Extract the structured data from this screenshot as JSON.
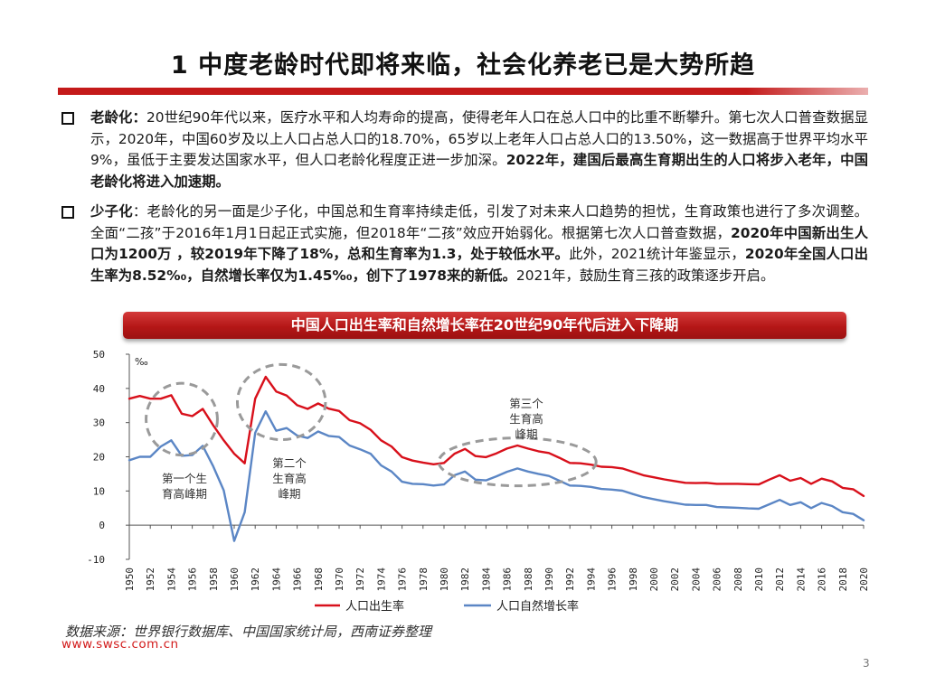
{
  "slide": {
    "title": "1 中度老龄时代即将来临，社会化养老已是大势所趋",
    "page_number": "3"
  },
  "bullets": [
    {
      "segments": [
        {
          "text": "老龄化：",
          "bold": true
        },
        {
          "text": "20世纪90年代以来，医疗水平和人均寿命的提高，使得老年人口在总人口中的比重不断攀升。第七次人口普查数据显示，2020年，中国60岁及以上人口占总人口的18.70%，65岁以上老年人口占总人口的13.50%，这一数据高于世界平均水平9%，虽低于主要发达国家水平，但人口老龄化程度正进一步加深。",
          "bold": false
        },
        {
          "text": "2022年，建国后最高生育期出生的人口将步入老年，中国老龄化将进入加速期。",
          "bold": true
        }
      ]
    },
    {
      "segments": [
        {
          "text": "少子化",
          "bold": true
        },
        {
          "text": "：老龄化的另一面是少子化，中国总和生育率持续走低，引发了对未来人口趋势的担忧，生育政策也进行了多次调整。全面“二孩”于2016年1月1日起正式实施，但2018年“二孩”效应开始弱化。根据第七次人口普查数据，",
          "bold": false
        },
        {
          "text": "2020年中国新出生人口为1200万 ，较2019年下降了18%，总和生育率为1.3，处于较低水平。",
          "bold": true
        },
        {
          "text": "此外，2021统计年鉴显示，",
          "bold": false
        },
        {
          "text": "2020年全国人口出生率为8.52%₀，自然增长率仅为1.45%₀，创下了1978来的新低。",
          "bold": true
        },
        {
          "text": "2021年，鼓励生育三孩的政策逐步开启。",
          "bold": false
        }
      ]
    }
  ],
  "chart_banner": "中国人口出生率和自然增长率在20世纪90年代后进入下降期",
  "chart_data": {
    "type": "line",
    "unit_label": "‰",
    "ylim": [
      -10,
      50
    ],
    "yticks": [
      -10,
      0,
      10,
      20,
      30,
      40,
      50
    ],
    "xlim": [
      1950,
      2020
    ],
    "xticks": [
      1950,
      1952,
      1954,
      1956,
      1958,
      1960,
      1962,
      1964,
      1966,
      1968,
      1970,
      1972,
      1974,
      1976,
      1978,
      1980,
      1982,
      1984,
      1986,
      1988,
      1990,
      1992,
      1994,
      1996,
      1998,
      2000,
      2002,
      2004,
      2006,
      2008,
      2010,
      2012,
      2014,
      2016,
      2018,
      2020
    ],
    "x": [
      1950,
      1951,
      1952,
      1953,
      1954,
      1955,
      1956,
      1957,
      1958,
      1959,
      1960,
      1961,
      1962,
      1963,
      1964,
      1965,
      1966,
      1967,
      1968,
      1969,
      1970,
      1971,
      1972,
      1973,
      1974,
      1975,
      1976,
      1977,
      1978,
      1979,
      1980,
      1981,
      1982,
      1983,
      1984,
      1985,
      1986,
      1987,
      1988,
      1989,
      1990,
      1991,
      1992,
      1993,
      1994,
      1995,
      1996,
      1997,
      1998,
      1999,
      2000,
      2001,
      2002,
      2003,
      2004,
      2005,
      2006,
      2007,
      2008,
      2009,
      2010,
      2011,
      2012,
      2013,
      2014,
      2015,
      2016,
      2017,
      2018,
      2019,
      2020
    ],
    "series": [
      {
        "name": "人口出生率",
        "color": "#d8101b",
        "values": [
          37.0,
          37.8,
          37.0,
          37.0,
          38.0,
          32.6,
          31.9,
          34.0,
          29.2,
          24.8,
          20.9,
          18.1,
          37.0,
          43.4,
          39.1,
          37.9,
          35.1,
          34.0,
          35.6,
          34.1,
          33.4,
          30.7,
          29.8,
          27.9,
          24.8,
          23.0,
          19.9,
          18.9,
          18.3,
          17.8,
          18.2,
          20.9,
          22.3,
          20.2,
          19.9,
          21.0,
          22.4,
          23.3,
          22.4,
          21.6,
          21.1,
          19.7,
          18.2,
          18.1,
          17.7,
          17.1,
          16.98,
          16.6,
          15.6,
          14.6,
          14.0,
          13.4,
          12.9,
          12.4,
          12.3,
          12.4,
          12.1,
          12.1,
          12.1,
          12.0,
          11.9,
          13.3,
          14.6,
          13.0,
          13.8,
          12.1,
          13.6,
          12.8,
          10.9,
          10.5,
          8.52
        ]
      },
      {
        "name": "人口自然增长率",
        "color": "#5b86c5",
        "values": [
          19.0,
          20.0,
          20.0,
          23.0,
          24.8,
          20.3,
          20.5,
          23.2,
          17.2,
          10.2,
          -4.6,
          3.8,
          27.0,
          33.3,
          27.6,
          28.4,
          26.2,
          25.5,
          27.4,
          26.1,
          25.8,
          23.3,
          22.2,
          20.9,
          17.5,
          15.7,
          12.7,
          12.1,
          12.0,
          11.6,
          11.9,
          14.6,
          15.7,
          13.3,
          13.1,
          14.3,
          15.6,
          16.6,
          15.7,
          15.0,
          14.4,
          13.0,
          11.6,
          11.5,
          11.2,
          10.6,
          10.4,
          10.1,
          9.1,
          8.2,
          7.6,
          7.0,
          6.5,
          6.0,
          5.9,
          5.9,
          5.3,
          5.2,
          5.1,
          4.9,
          4.8,
          6.1,
          7.4,
          5.9,
          6.7,
          5.0,
          6.5,
          5.6,
          3.8,
          3.3,
          1.45
        ]
      }
    ],
    "annotations": [
      {
        "text_lines": [
          "第一个生",
          "育高峰期"
        ]
      },
      {
        "text_lines": [
          "第二个",
          "生育高",
          "峰期"
        ]
      },
      {
        "text_lines": [
          "第三个",
          "生育高",
          "峰期"
        ]
      }
    ],
    "legend": "bottom",
    "grid": false
  },
  "footer": {
    "source": "数据来源：世界银行数据库、中国国家统计局，西南证券整理",
    "website": "www.swsc.com.cn"
  }
}
